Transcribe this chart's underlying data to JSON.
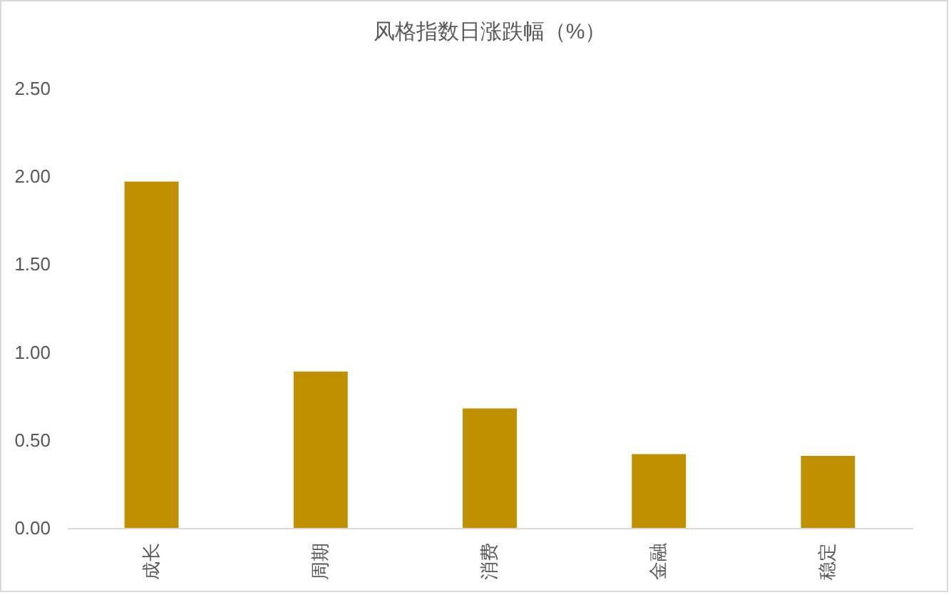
{
  "chart_data": {
    "type": "bar",
    "title": "风格指数日涨跌幅（%）",
    "categories": [
      "成长",
      "周期",
      "消费",
      "金融",
      "稳定"
    ],
    "values": [
      1.97,
      0.89,
      0.68,
      0.42,
      0.41
    ],
    "color": "#bf9000",
    "ylim": [
      0,
      2.5
    ],
    "yticks": [
      {
        "value": 0,
        "label": "0.00"
      },
      {
        "value": 0.5,
        "label": "0.50"
      },
      {
        "value": 1,
        "label": "1.00"
      },
      {
        "value": 1.5,
        "label": "1.50"
      },
      {
        "value": 2,
        "label": "2.00"
      },
      {
        "value": 2.5,
        "label": "2.50"
      }
    ],
    "grid": false
  }
}
